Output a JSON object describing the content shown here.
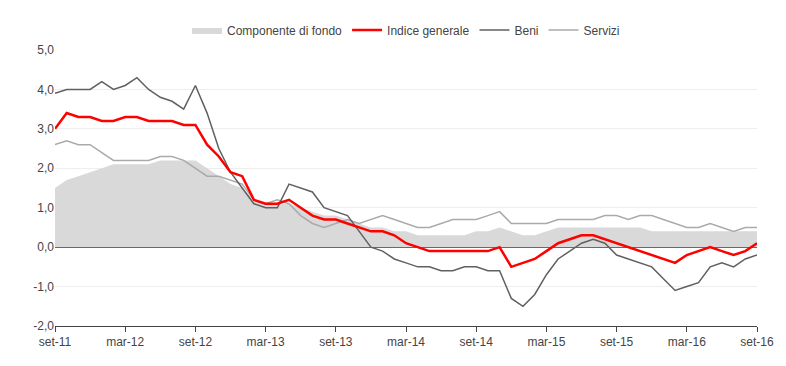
{
  "chart_data": {
    "type": "line",
    "categories": [
      "set-11",
      null,
      null,
      null,
      null,
      null,
      "mar-12",
      null,
      null,
      null,
      null,
      null,
      "set-12",
      null,
      null,
      null,
      null,
      null,
      "mar-13",
      null,
      null,
      null,
      null,
      null,
      "set-13",
      null,
      null,
      null,
      null,
      null,
      "mar-14",
      null,
      null,
      null,
      null,
      null,
      "set-14",
      null,
      null,
      null,
      null,
      null,
      "mar-15",
      null,
      null,
      null,
      null,
      null,
      "set-15",
      null,
      null,
      null,
      null,
      null,
      "mar-16",
      null,
      null,
      null,
      null,
      null,
      "set-16"
    ],
    "series": [
      {
        "name": "Componente di fondo",
        "type": "area",
        "color": "#d9d9d9",
        "values": [
          1.5,
          1.7,
          1.8,
          1.9,
          2.0,
          2.1,
          2.1,
          2.1,
          2.1,
          2.2,
          2.2,
          2.2,
          2.2,
          2.0,
          1.8,
          1.6,
          1.5,
          1.2,
          1.1,
          1.1,
          1.1,
          1.0,
          0.9,
          0.8,
          0.8,
          0.7,
          0.6,
          0.5,
          0.5,
          0.4,
          0.4,
          0.3,
          0.3,
          0.3,
          0.3,
          0.3,
          0.4,
          0.4,
          0.5,
          0.4,
          0.3,
          0.3,
          0.4,
          0.5,
          0.5,
          0.5,
          0.5,
          0.5,
          0.5,
          0.5,
          0.5,
          0.4,
          0.4,
          0.4,
          0.4,
          0.4,
          0.4,
          0.4,
          0.4,
          0.4,
          0.4
        ]
      },
      {
        "name": "Indice generale",
        "type": "line",
        "color": "#ff0000",
        "values": [
          3.0,
          3.4,
          3.3,
          3.3,
          3.2,
          3.2,
          3.3,
          3.3,
          3.2,
          3.2,
          3.2,
          3.1,
          3.1,
          2.6,
          2.3,
          1.9,
          1.8,
          1.2,
          1.1,
          1.1,
          1.2,
          1.0,
          0.8,
          0.7,
          0.7,
          0.6,
          0.5,
          0.4,
          0.4,
          0.3,
          0.1,
          0.0,
          -0.1,
          -0.1,
          -0.1,
          -0.1,
          -0.1,
          -0.1,
          0.0,
          -0.5,
          -0.4,
          -0.3,
          -0.1,
          0.1,
          0.2,
          0.3,
          0.3,
          0.2,
          0.1,
          0.0,
          -0.1,
          -0.2,
          -0.3,
          -0.4,
          -0.2,
          -0.1,
          0.0,
          -0.1,
          -0.2,
          -0.1,
          0.1
        ]
      },
      {
        "name": "Beni",
        "type": "line",
        "color": "#606060",
        "values": [
          3.9,
          4.0,
          4.0,
          4.0,
          4.2,
          4.0,
          4.1,
          4.3,
          4.0,
          3.8,
          3.7,
          3.5,
          4.1,
          3.4,
          2.5,
          1.9,
          1.5,
          1.1,
          1.0,
          1.0,
          1.6,
          1.5,
          1.4,
          1.0,
          0.9,
          0.8,
          0.4,
          0.0,
          -0.1,
          -0.3,
          -0.4,
          -0.5,
          -0.5,
          -0.6,
          -0.6,
          -0.5,
          -0.5,
          -0.6,
          -0.6,
          -1.3,
          -1.5,
          -1.2,
          -0.7,
          -0.3,
          -0.1,
          0.1,
          0.2,
          0.1,
          -0.2,
          -0.3,
          -0.4,
          -0.5,
          -0.8,
          -1.1,
          -1.0,
          -0.9,
          -0.5,
          -0.4,
          -0.5,
          -0.3,
          -0.2
        ]
      },
      {
        "name": "Servizi",
        "type": "line",
        "color": "#aaaaaa",
        "values": [
          2.6,
          2.7,
          2.6,
          2.6,
          2.4,
          2.2,
          2.2,
          2.2,
          2.2,
          2.3,
          2.3,
          2.2,
          2.0,
          1.8,
          1.8,
          1.7,
          1.6,
          1.2,
          1.1,
          1.2,
          1.1,
          0.8,
          0.6,
          0.5,
          0.6,
          0.7,
          0.6,
          0.7,
          0.8,
          0.7,
          0.6,
          0.5,
          0.5,
          0.6,
          0.7,
          0.7,
          0.7,
          0.8,
          0.9,
          0.6,
          0.6,
          0.6,
          0.6,
          0.7,
          0.7,
          0.7,
          0.7,
          0.8,
          0.8,
          0.7,
          0.8,
          0.8,
          0.7,
          0.6,
          0.5,
          0.5,
          0.6,
          0.5,
          0.4,
          0.5,
          0.5
        ]
      }
    ],
    "ylim": [
      -2.0,
      5.0
    ],
    "yticks": [
      {
        "value": -2.0,
        "label": "-2,0"
      },
      {
        "value": -1.0,
        "label": "-1,0"
      },
      {
        "value": 0.0,
        "label": "0,0"
      },
      {
        "value": 1.0,
        "label": "1,0"
      },
      {
        "value": 2.0,
        "label": "2,0"
      },
      {
        "value": 3.0,
        "label": "3,0"
      },
      {
        "value": 4.0,
        "label": "4,0"
      },
      {
        "value": 5.0,
        "label": "5,0"
      }
    ],
    "grid": true,
    "legend": "top"
  }
}
